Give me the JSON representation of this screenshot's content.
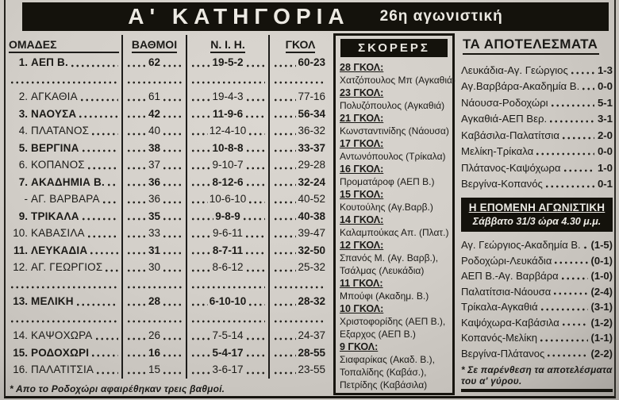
{
  "header": {
    "title": "Α' ΚΑΤΗΓΟΡΙΑ",
    "subtitle": "26η αγωνιστική"
  },
  "standings": {
    "columns": [
      "ΟΜΑΔΕΣ",
      "ΒΑΘΜΟΙ",
      "Ν. Ι. Η.",
      "ΓΚΟΛ"
    ],
    "rows": [
      {
        "pos": "1.",
        "team": "ΑΕΠ Β.",
        "points": "62",
        "wdl": "19-5-2",
        "goals": "60-23",
        "bold": true
      },
      {
        "divider": true
      },
      {
        "pos": "2.",
        "team": "ΑΓΚΑΘΙΑ",
        "points": "61",
        "wdl": "19-4-3",
        "goals": "77-16"
      },
      {
        "pos": "3.",
        "team": "ΝΑΟΥΣΑ",
        "points": "42",
        "wdl": "11-9-6",
        "goals": "56-34",
        "bold": true
      },
      {
        "pos": "4.",
        "team": "ΠΛΑΤΑΝΟΣ",
        "points": "40",
        "wdl": "12-4-10",
        "goals": "36-32"
      },
      {
        "pos": "5.",
        "team": "ΒΕΡΓΙΝΑ",
        "points": "38",
        "wdl": "10-8-8",
        "goals": "33-37",
        "bold": true
      },
      {
        "pos": "6.",
        "team": "ΚΟΠΑΝΟΣ",
        "points": "37",
        "wdl": "9-10-7",
        "goals": "29-28"
      },
      {
        "pos": "7.",
        "team": "ΑΚΑΔΗΜΙΑ Β.",
        "points": "36",
        "wdl": "8-12-6",
        "goals": "32-24",
        "bold": true
      },
      {
        "pos": "-",
        "team": "ΑΓ. ΒΑΡΒΑΡΑ",
        "points": "36",
        "wdl": "10-6-10",
        "goals": "40-52"
      },
      {
        "pos": "9.",
        "team": "ΤΡΙΚΑΛΑ",
        "points": "35",
        "wdl": "9-8-9",
        "goals": "40-38",
        "bold": true
      },
      {
        "pos": "10.",
        "team": "ΚΑΒΑΣΙΛΑ",
        "points": "33",
        "wdl": "9-6-11",
        "goals": "39-47"
      },
      {
        "pos": "11.",
        "team": "ΛΕΥΚΑΔΙΑ",
        "points": "31",
        "wdl": "8-7-11",
        "goals": "32-50",
        "bold": true
      },
      {
        "pos": "12.",
        "team": "ΑΓ. ΓΕΩΡΓΙΟΣ",
        "points": "30",
        "wdl": "8-6-12",
        "goals": "25-32"
      },
      {
        "divider": true
      },
      {
        "pos": "13.",
        "team": "ΜΕΛΙΚΗ",
        "points": "28",
        "wdl": "6-10-10",
        "goals": "28-32",
        "bold": true
      },
      {
        "divider": true
      },
      {
        "pos": "14.",
        "team": "ΚΑΨΟΧΩΡΑ",
        "points": "26",
        "wdl": "7-5-14",
        "goals": "24-37"
      },
      {
        "pos": "15.",
        "team": "ΡΟΔΟΧΩΡΙ",
        "points": "16",
        "wdl": "5-4-17",
        "goals": "28-55",
        "bold": true
      },
      {
        "pos": "16.",
        "team": "ΠΑΛΑΤΙΤΣΙΑ",
        "points": "15",
        "wdl": "3-6-17",
        "goals": "23-55"
      }
    ],
    "footnote": "* Απο το Ροδοχώρι αφαιρέθηκαν τρεις βαθμοί."
  },
  "scorers": {
    "title": "ΣΚΟΡΕΡΣ",
    "groups": [
      {
        "goals": "28 ΓΚΟΛ:",
        "players": [
          "Χατζόπουλος Μπ (Αγκαθιά)"
        ]
      },
      {
        "goals": "23 ΓΚΟΛ:",
        "players": [
          "Πολυζόπουλος (Αγκαθιά)"
        ]
      },
      {
        "goals": "21 ΓΚΟΛ:",
        "players": [
          "Κωνσταντινίδης (Νάουσα)"
        ]
      },
      {
        "goals": "17 ΓΚΟΛ:",
        "players": [
          "Αντωνόπουλος (Τρίκαλα)"
        ]
      },
      {
        "goals": "16 ΓΚΟΛ:",
        "players": [
          "Προματάροφ (ΑΕΠ Β.)"
        ]
      },
      {
        "goals": "15 ΓΚΟΛ:",
        "players": [
          "Κουτούλης (Αγ.Βαρβ.)"
        ]
      },
      {
        "goals": "14 ΓΚΟΛ:",
        "players": [
          "Καλαμπούκας Απ. (Πλατ.)"
        ]
      },
      {
        "goals": "12 ΓΚΟΛ:",
        "players": [
          "Σπανός Μ. (Αγ. Βαρβ.),",
          "Τσάλμας (Λευκάδια)"
        ]
      },
      {
        "goals": "11 ΓΚΟΛ:",
        "players": [
          "Μπούφι (Ακαδημ. Β.)"
        ]
      },
      {
        "goals": "10 ΓΚΟΛ:",
        "players": [
          "Χριστοφορίδης (ΑΕΠ Β.),",
          "Εξαρχος (ΑΕΠ Β.)"
        ]
      },
      {
        "goals": "9 ΓΚΟΛ:",
        "players": [
          "Σιαφαρίκας (Ακαδ. Β.),",
          "Τοπαλίδης (Καβάσ.),",
          "Πετρίδης (Καβάσιλα)"
        ]
      }
    ]
  },
  "results": {
    "title": "ΤΑ ΑΠΟΤΕΛΕΣΜΑΤΑ",
    "matches": [
      {
        "pair": "Λευκάδια-Αγ. Γεώργιος",
        "score": "1-3"
      },
      {
        "pair": "Αγ.Βαρβάρα-Ακαδημία Β.",
        "score": "0-0"
      },
      {
        "pair": "Νάουσα-Ροδοχώρι",
        "score": "5-1"
      },
      {
        "pair": "Αγκαθιά-ΑΕΠ Βερ.",
        "score": "3-1"
      },
      {
        "pair": "Καβάσιλα-Παλατίτσια",
        "score": "2-0"
      },
      {
        "pair": "Μελίκη-Τρίκαλα",
        "score": "0-0"
      },
      {
        "pair": "Πλάτανος-Καψόχωρα",
        "score": "1-0"
      },
      {
        "pair": "Βεργίνα-Κοπανός",
        "score": "0-1"
      }
    ]
  },
  "next_round": {
    "title": "Η ΕΠΟΜΕΝΗ ΑΓΩΝΙΣΤΙΚΗ",
    "subtitle": "Σάββατο 31/3 ώρα 4.30 μ.μ.",
    "fixtures": [
      {
        "pair": "Αγ. Γεώργιος-Ακαδημία Β.",
        "score": "(1-5)"
      },
      {
        "pair": "Ροδοχώρι-Λευκάδια",
        "score": "(0-1)"
      },
      {
        "pair": "ΑΕΠ Β.-Αγ. Βαρβάρα",
        "score": "(1-0)"
      },
      {
        "pair": "Παλατίτσια-Νάουσα",
        "score": "(2-4)"
      },
      {
        "pair": "Τρίκαλα-Αγκαθιά",
        "score": "(3-1)"
      },
      {
        "pair": "Καψόχωρα-Καβάσιλα",
        "score": "(1-2)"
      },
      {
        "pair": "Κοπανός-Μελίκη",
        "score": "(1-1)"
      },
      {
        "pair": "Βεργίνα-Πλάτανος",
        "score": "(2-2)"
      }
    ],
    "footnote": "* Σε παρένθεση τα αποτελέσματα του α' γύρου."
  }
}
